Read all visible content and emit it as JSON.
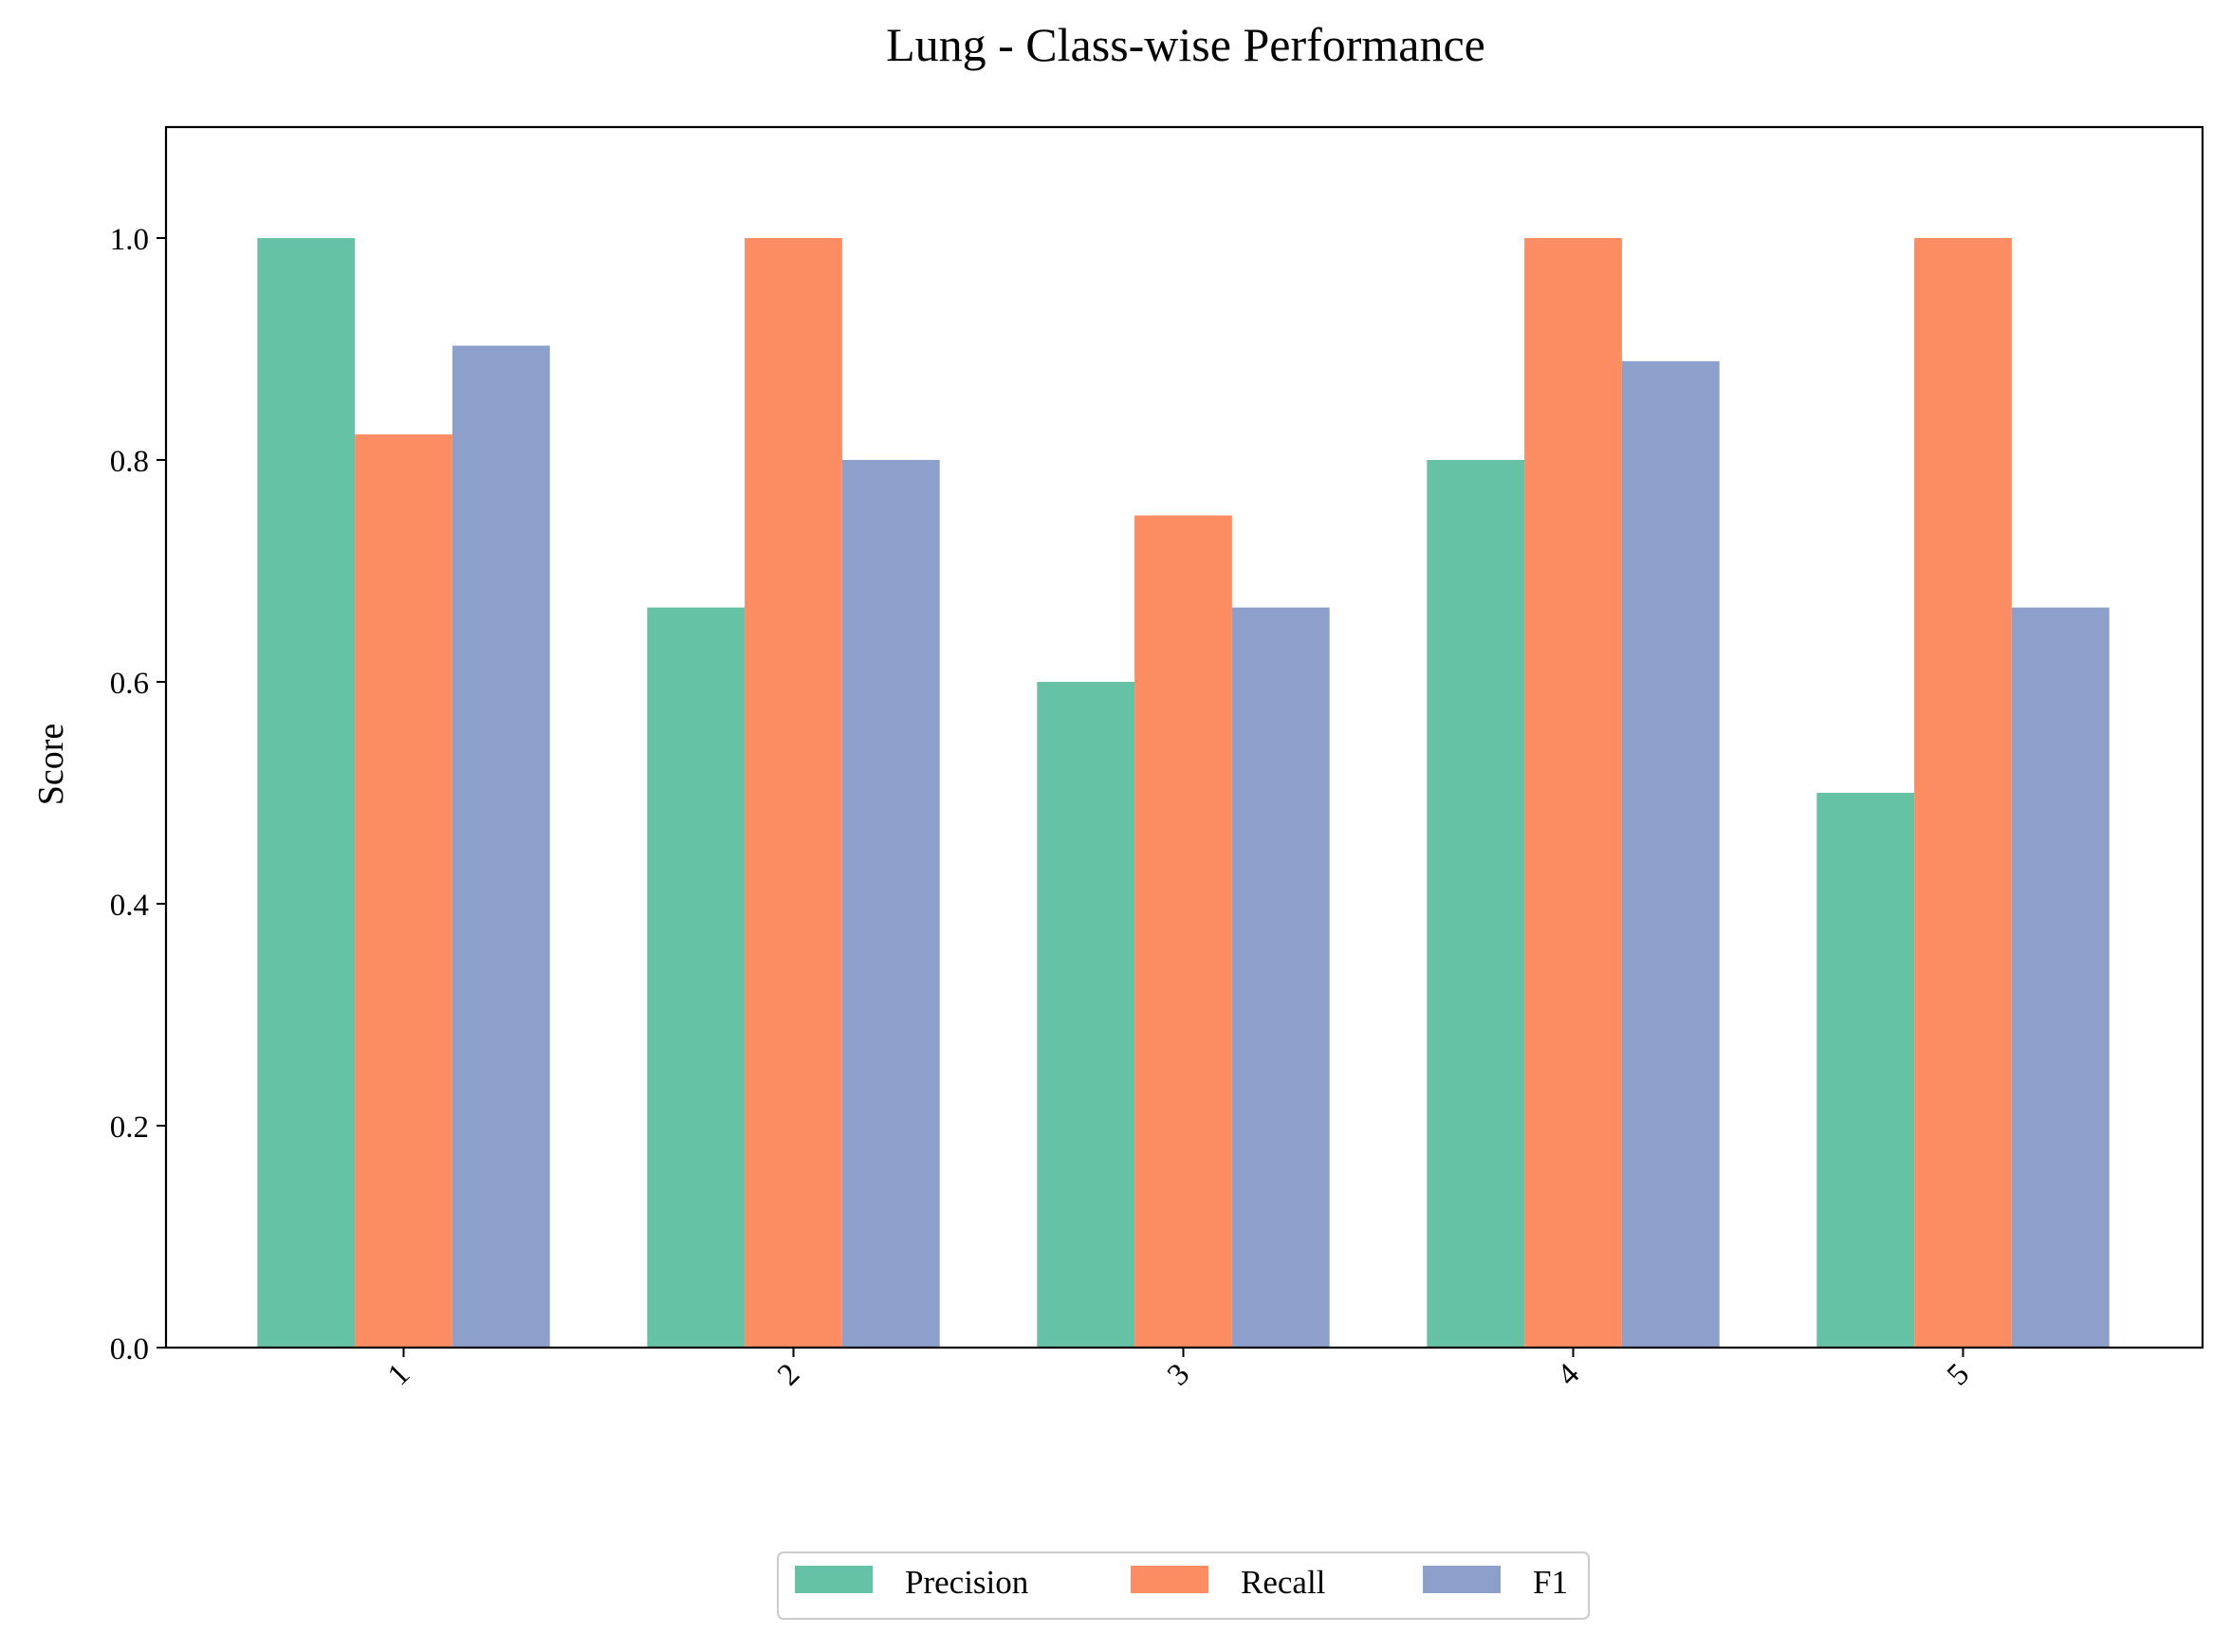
{
  "chart_data": {
    "type": "bar",
    "title": "Lung - Class-wise Performance",
    "xlabel": "",
    "ylabel": "Score",
    "categories": [
      "1",
      "2",
      "3",
      "4",
      "5"
    ],
    "series": [
      {
        "name": "Precision",
        "color": "#66c2a5",
        "values": [
          1.0,
          0.667,
          0.6,
          0.8,
          0.5
        ]
      },
      {
        "name": "Recall",
        "color": "#fc8d62",
        "values": [
          0.823,
          1.0,
          0.75,
          1.0,
          1.0
        ]
      },
      {
        "name": "F1",
        "color": "#8da0cb",
        "values": [
          0.903,
          0.8,
          0.667,
          0.889,
          0.667
        ]
      }
    ],
    "ylim": [
      0,
      1.1
    ],
    "yticks": [
      "0.0",
      "0.2",
      "0.4",
      "0.6",
      "0.8",
      "1.0"
    ],
    "grid": false,
    "legend": "bottom-center"
  }
}
